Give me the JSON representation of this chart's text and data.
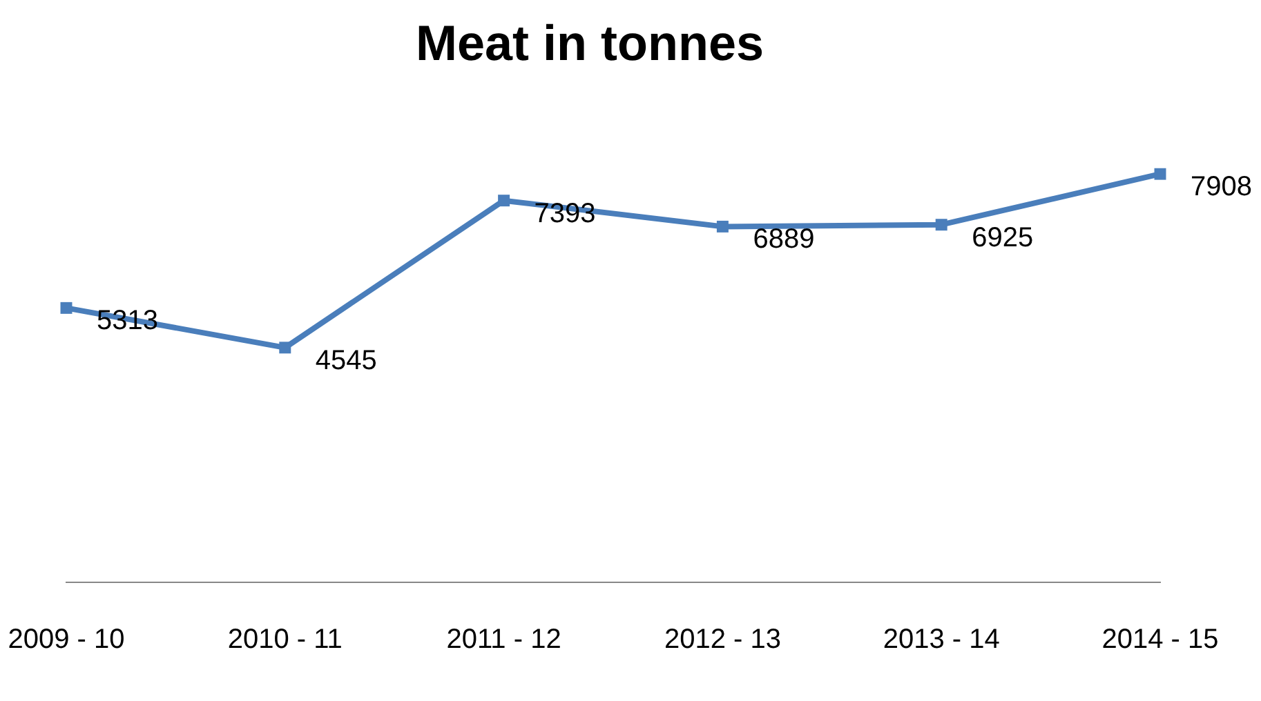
{
  "chart_data": {
    "type": "line",
    "title": "Meat in tonnes",
    "categories": [
      "2009 - 10",
      "2010 - 11",
      "2011 - 12",
      "2012 - 13",
      "2013 - 14",
      "2014 - 15"
    ],
    "series": [
      {
        "color": "#4a7ebb",
        "values": [
          5313,
          4545,
          7393,
          6889,
          6925,
          7908
        ]
      }
    ],
    "data_labels": true,
    "marker": "square",
    "line_style": "solid",
    "grid": false,
    "legend": false
  }
}
